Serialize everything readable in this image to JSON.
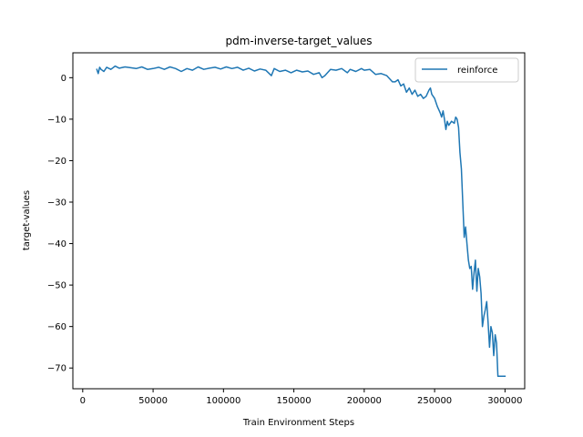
{
  "chart_data": {
    "type": "line",
    "title": "pdm-inverse-target_values",
    "xlabel": "Train Environment Steps",
    "ylabel": "target-values",
    "xlim": [
      -7000,
      314000
    ],
    "ylim": [
      -75,
      6
    ],
    "xticks": [
      0,
      50000,
      100000,
      150000,
      200000,
      250000,
      300000
    ],
    "yticks": [
      0,
      -10,
      -20,
      -30,
      -40,
      -50,
      -60,
      -70
    ],
    "xtick_labels": [
      "0",
      "50000",
      "100000",
      "150000",
      "200000",
      "250000",
      "300000"
    ],
    "ytick_labels": [
      "0",
      "−10",
      "−20",
      "−30",
      "−40",
      "−50",
      "−60",
      "−70"
    ],
    "grid": false,
    "legend_position": "top-right",
    "series": [
      {
        "name": "reinforce",
        "color": "#1f77b4",
        "x": [
          10000,
          11000,
          12000,
          13000,
          15000,
          17000,
          20000,
          23000,
          26000,
          30000,
          34000,
          38000,
          42000,
          46000,
          50000,
          54000,
          58000,
          62000,
          66000,
          70000,
          74000,
          78000,
          82000,
          86000,
          90000,
          94000,
          98000,
          102000,
          106000,
          110000,
          114000,
          118000,
          122000,
          126000,
          130000,
          134000,
          136000,
          140000,
          144000,
          148000,
          152000,
          156000,
          160000,
          164000,
          168000,
          170000,
          172000,
          176000,
          180000,
          184000,
          188000,
          190000,
          194000,
          198000,
          200000,
          204000,
          208000,
          212000,
          216000,
          220000,
          222000,
          224000,
          226000,
          228000,
          230000,
          232000,
          234000,
          236000,
          238000,
          240000,
          242000,
          244000,
          246000,
          247000,
          248000,
          250000,
          252000,
          254000,
          255000,
          256000,
          257000,
          258000,
          259000,
          260000,
          262000,
          264000,
          265000,
          266000,
          267000,
          268000,
          269000,
          270000,
          271000,
          272000,
          273000,
          274000,
          275000,
          276000,
          277000,
          278000,
          279000,
          280000,
          281000,
          282000,
          283000,
          284000,
          285000,
          286000,
          287000,
          288000,
          289000,
          290000,
          291000,
          292000,
          293000,
          294000,
          295000,
          296000,
          297000,
          298000,
          299000,
          300000
        ],
        "y": [
          2.0,
          1.0,
          2.5,
          2.0,
          1.5,
          2.5,
          2.0,
          2.8,
          2.3,
          2.6,
          2.4,
          2.2,
          2.6,
          2.0,
          2.2,
          2.5,
          2.0,
          2.6,
          2.2,
          1.5,
          2.2,
          1.8,
          2.6,
          2.0,
          2.3,
          2.5,
          2.1,
          2.6,
          2.2,
          2.5,
          1.8,
          2.3,
          1.6,
          2.1,
          1.8,
          0.5,
          2.2,
          1.5,
          1.8,
          1.2,
          1.8,
          1.4,
          1.6,
          0.8,
          1.2,
          0.0,
          0.5,
          2.0,
          1.8,
          2.2,
          1.2,
          2.0,
          1.5,
          2.2,
          1.8,
          2.0,
          0.8,
          1.0,
          0.5,
          -1.0,
          -1.0,
          -0.5,
          -2.0,
          -1.5,
          -3.5,
          -2.5,
          -4.0,
          -3.0,
          -4.5,
          -4.0,
          -5.0,
          -4.5,
          -3.0,
          -2.5,
          -4.0,
          -5.0,
          -7.0,
          -8.5,
          -9.5,
          -8.0,
          -10.0,
          -12.5,
          -10.5,
          -11.5,
          -10.5,
          -11.0,
          -9.5,
          -10.0,
          -12.0,
          -18.0,
          -22.0,
          -30.0,
          -38.5,
          -36.0,
          -40.0,
          -44.0,
          -46.0,
          -45.5,
          -51.0,
          -47.0,
          -44.0,
          -51.5,
          -46.0,
          -48.0,
          -52.0,
          -60.0,
          -57.5,
          -56.0,
          -54.0,
          -59.0,
          -65.0,
          -60.0,
          -61.5,
          -67.0,
          -62.0,
          -64.0,
          -72.0,
          -72.0,
          -72.0,
          -72.0,
          -72.0,
          -72.0
        ]
      }
    ]
  }
}
